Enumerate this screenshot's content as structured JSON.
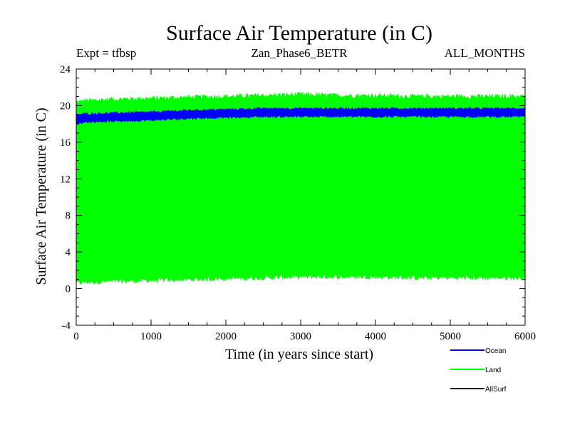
{
  "chart_data": {
    "type": "area",
    "title": "Surface Air Temperature (in C)",
    "subtitle_left": "Expt = tfbsp",
    "subtitle_center": "Zan_Phase6_BETR",
    "subtitle_right": "ALL_MONTHS",
    "xlabel": "Time (in years since start)",
    "ylabel": "Surface Air Temperature (in C)",
    "xlim": [
      0,
      6000
    ],
    "ylim": [
      -4,
      24
    ],
    "x_ticks": [
      0,
      1000,
      2000,
      3000,
      4000,
      5000,
      6000
    ],
    "x_tick_labels": [
      "0",
      "1000",
      "2000",
      "3000",
      "4000",
      "5000",
      "6000"
    ],
    "y_ticks": [
      -4,
      0,
      4,
      8,
      12,
      16,
      20,
      24
    ],
    "y_tick_labels": [
      "-4",
      "0",
      "4",
      "8",
      "12",
      "16",
      "20",
      "24"
    ],
    "legend_position": "bottom-right",
    "series": [
      {
        "name": "Ocean",
        "color": "#0000ff",
        "kind": "band",
        "x": [
          0,
          100,
          500,
          1000,
          1500,
          2000,
          2500,
          3000,
          3500,
          4000,
          4500,
          5000,
          5500,
          6000
        ],
        "low": [
          17.9,
          18.2,
          18.3,
          18.4,
          18.6,
          18.7,
          18.8,
          18.8,
          18.8,
          18.8,
          18.8,
          18.8,
          18.8,
          18.8
        ],
        "high": [
          19.0,
          19.1,
          19.2,
          19.3,
          19.5,
          19.6,
          19.7,
          19.7,
          19.7,
          19.7,
          19.7,
          19.7,
          19.7,
          19.7
        ]
      },
      {
        "name": "Land",
        "color": "#00ff00",
        "kind": "band",
        "x": [
          0,
          100,
          500,
          1000,
          1500,
          2000,
          2500,
          3000,
          3500,
          4000,
          4500,
          5000,
          5500,
          6000
        ],
        "low": [
          0.6,
          0.7,
          0.8,
          0.9,
          1.0,
          1.1,
          1.2,
          1.3,
          1.3,
          1.3,
          1.2,
          1.2,
          1.2,
          1.2
        ],
        "high": [
          20.4,
          20.5,
          20.7,
          20.8,
          20.9,
          21.0,
          21.1,
          21.2,
          21.1,
          21.1,
          21.0,
          21.0,
          21.0,
          21.0
        ]
      },
      {
        "name": "AllSurf",
        "color": "#000000",
        "kind": "line",
        "x": [],
        "values": []
      }
    ]
  }
}
